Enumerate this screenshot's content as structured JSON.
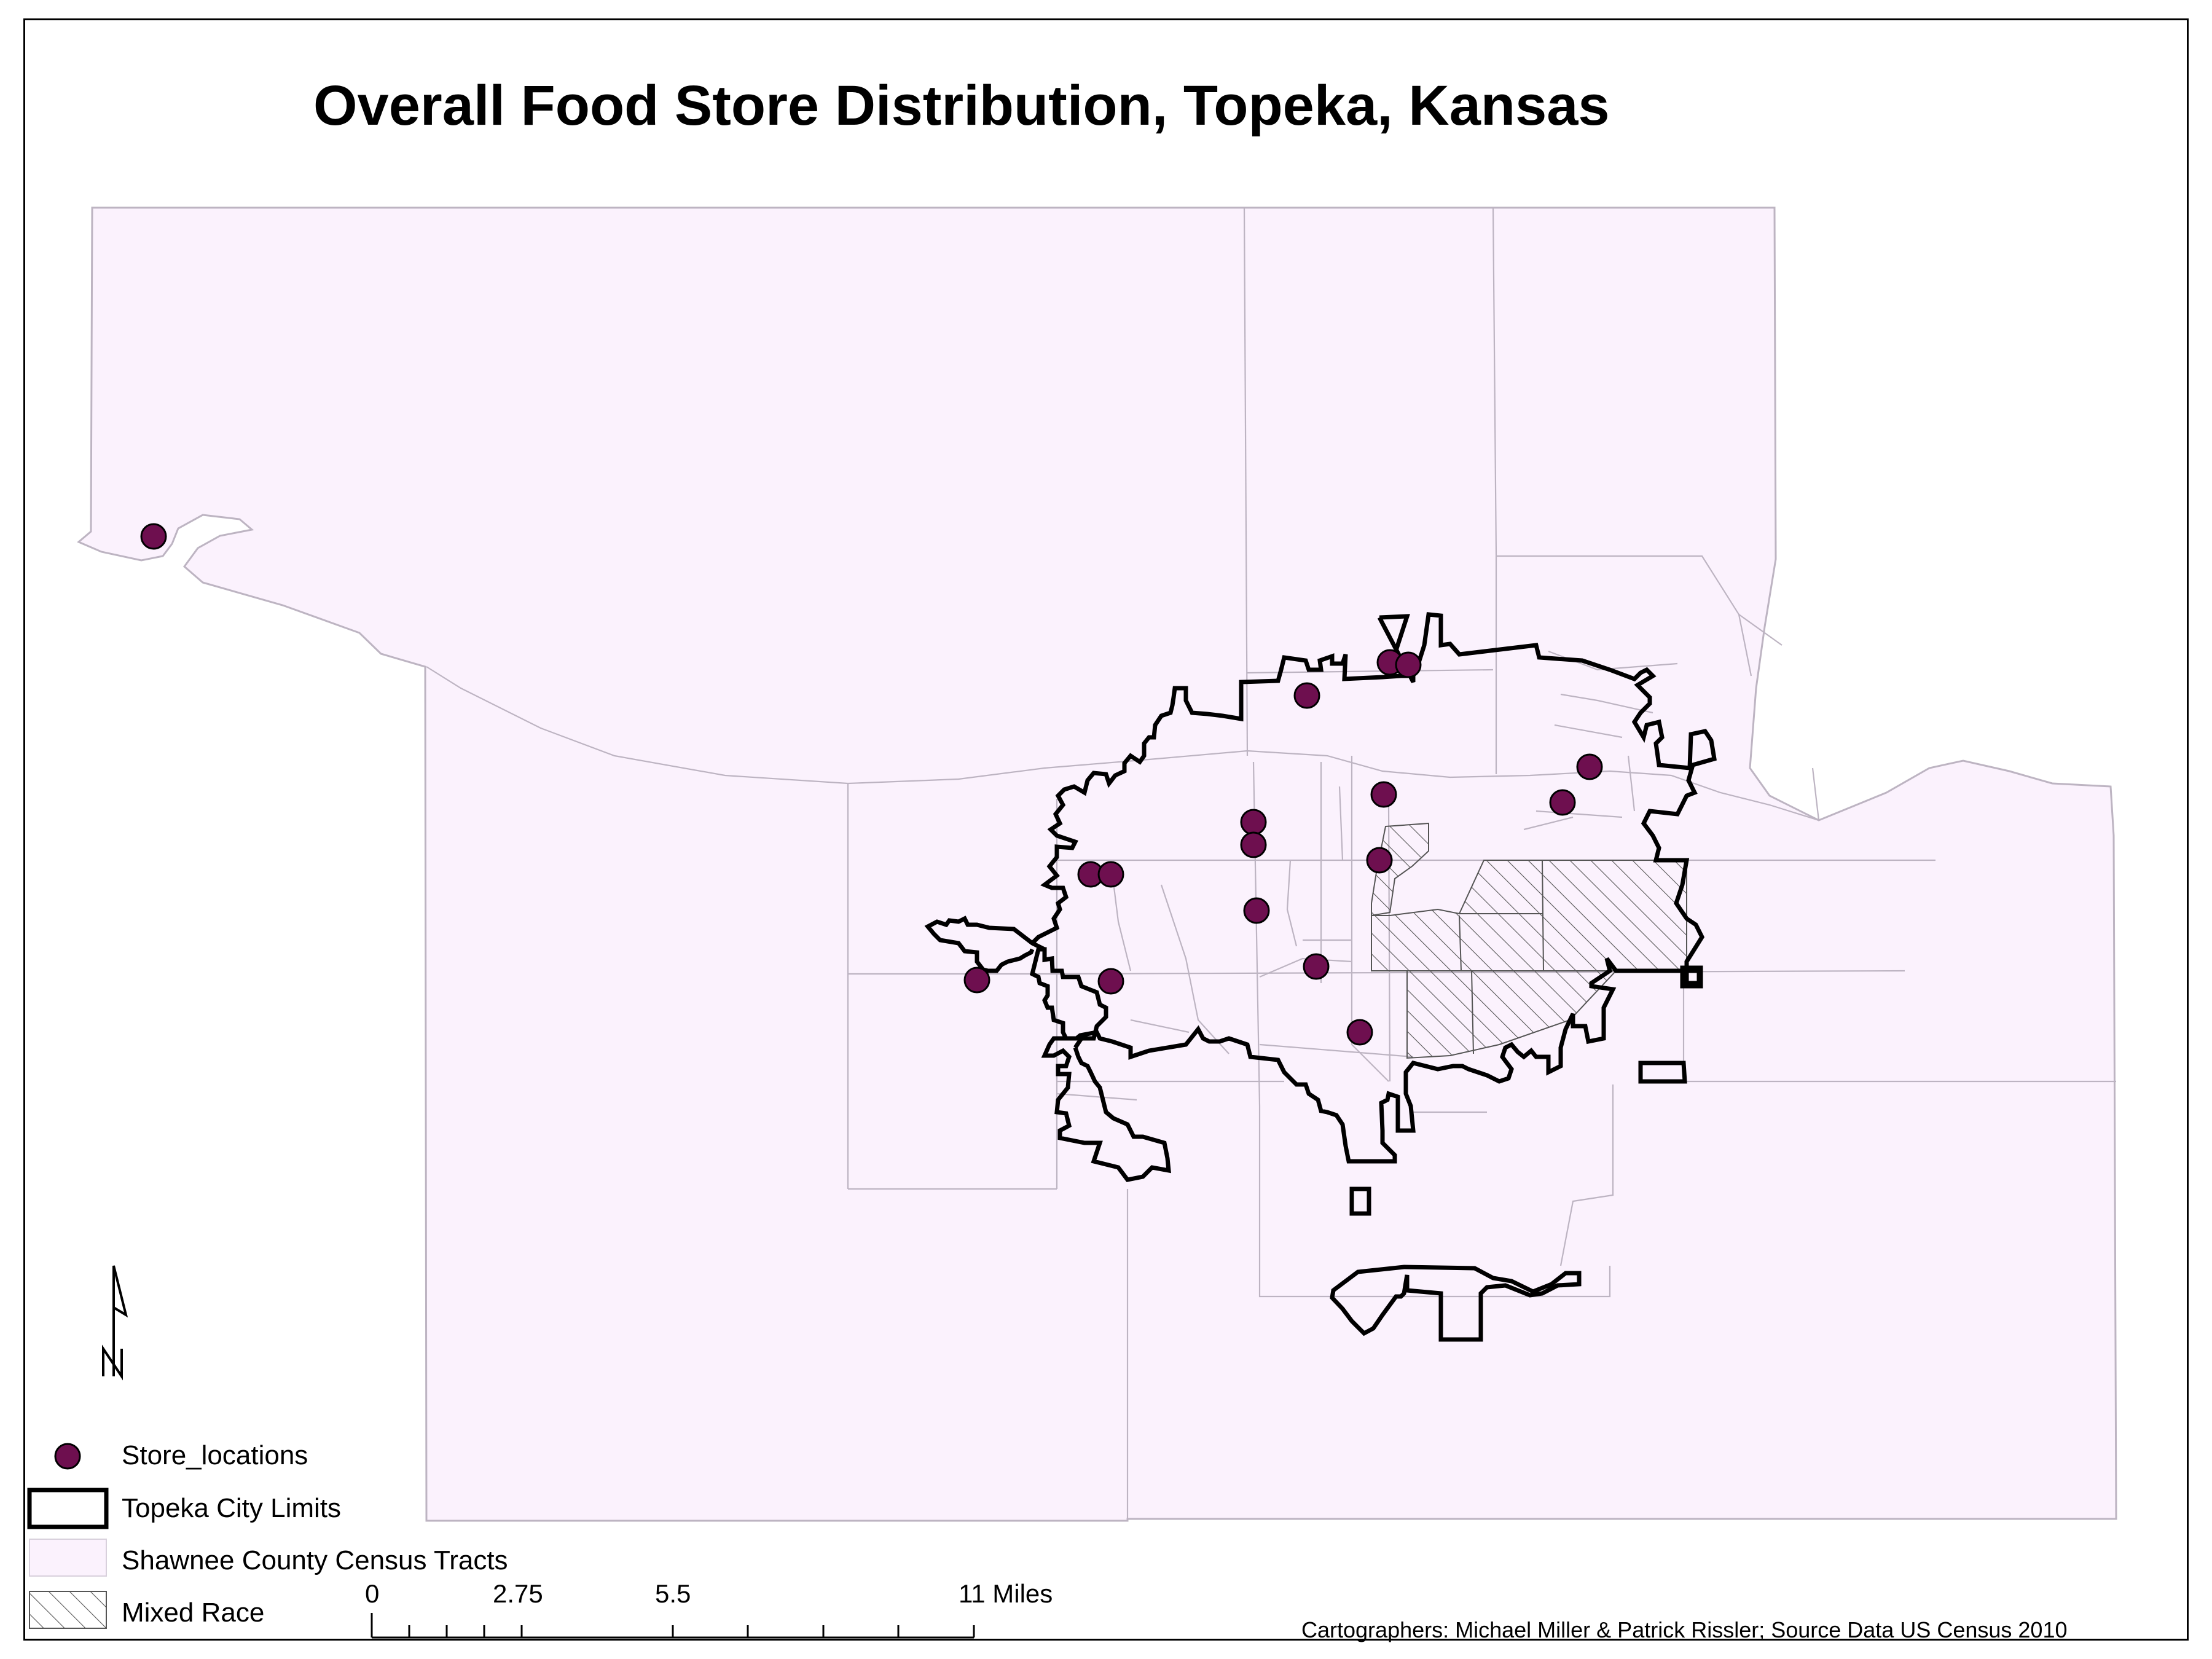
{
  "title": "Overall Food Store Distribution, Topeka, Kansas",
  "legend": {
    "stores": "Store_locations",
    "city_limits": "Topeka City Limits",
    "tracts": "Shawnee County Census Tracts",
    "mixed_race": "Mixed Race"
  },
  "scale_bar": {
    "labels": [
      "0",
      "2.75",
      "5.5",
      "11 Miles"
    ],
    "unit": "Miles"
  },
  "north_arrow": "N",
  "credit": "Cartographers: Michael Miller & Patrick Rissler; Source Data US Census 2010",
  "colors": {
    "tract_fill": "#fbf2fd",
    "tract_outline": "#c4bcc8",
    "store_fill": "#6e0f4f",
    "city_outline": "#000000"
  },
  "icons": {
    "north_arrow": "north-arrow-icon",
    "store_marker": "circle-marker",
    "mixed_race_swatch": "hatch-swatch"
  }
}
